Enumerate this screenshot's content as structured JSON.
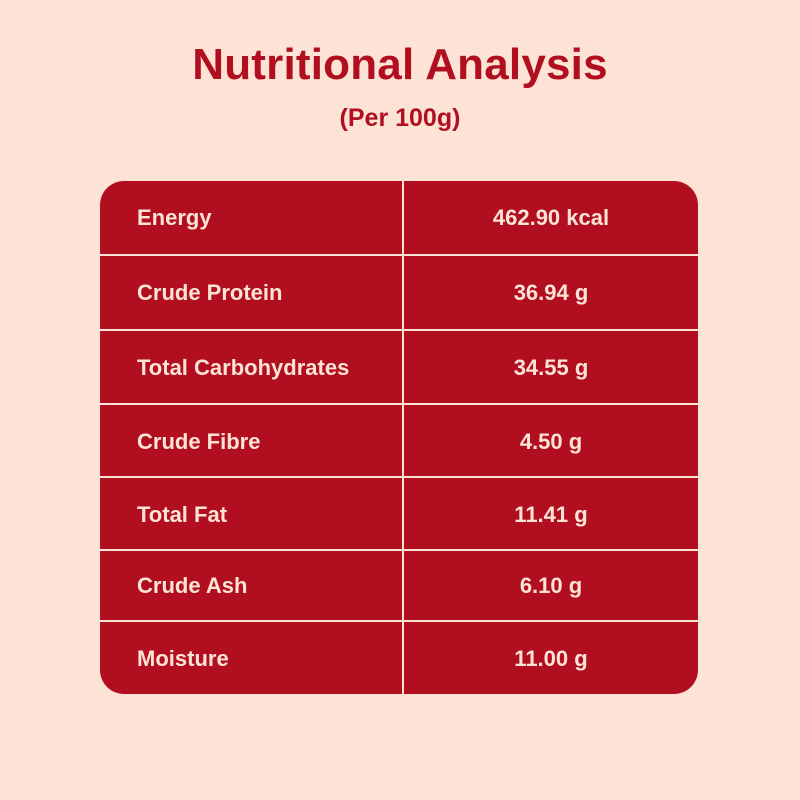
{
  "header": {
    "title": "Nutritional Analysis",
    "subtitle": "(Per 100g)"
  },
  "table": {
    "rows": [
      {
        "label": "Energy",
        "value": "462.90 kcal"
      },
      {
        "label": "Crude Protein",
        "value": "36.94 g"
      },
      {
        "label": "Total Carbohydrates",
        "value": "34.55 g"
      },
      {
        "label": "Crude Fibre",
        "value": "4.50 g"
      },
      {
        "label": "Total Fat",
        "value": "11.41 g"
      },
      {
        "label": "Crude Ash",
        "value": "6.10 g"
      },
      {
        "label": "Moisture",
        "value": "11.00 g"
      }
    ]
  },
  "colors": {
    "background": "#fce3d6",
    "accent": "#b10f20"
  }
}
